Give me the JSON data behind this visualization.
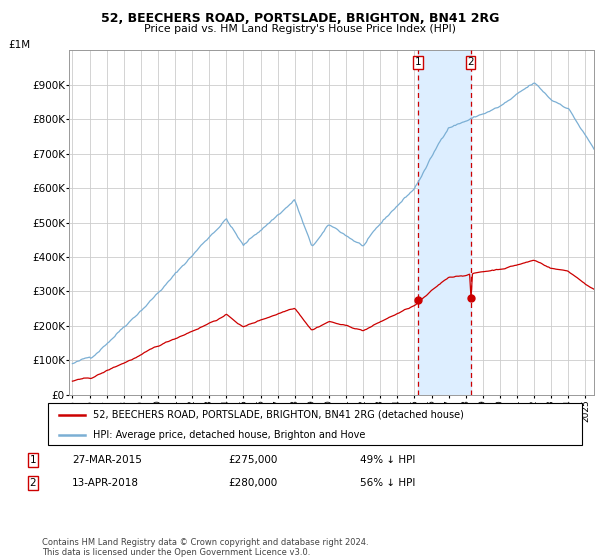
{
  "title": "52, BEECHERS ROAD, PORTSLADE, BRIGHTON, BN41 2RG",
  "subtitle": "Price paid vs. HM Land Registry's House Price Index (HPI)",
  "legend_label_red": "52, BEECHERS ROAD, PORTSLADE, BRIGHTON, BN41 2RG (detached house)",
  "legend_label_blue": "HPI: Average price, detached house, Brighton and Hove",
  "transaction1_date": "27-MAR-2015",
  "transaction1_price": "£275,000",
  "transaction1_hpi": "49% ↓ HPI",
  "transaction2_date": "13-APR-2018",
  "transaction2_price": "£280,000",
  "transaction2_hpi": "56% ↓ HPI",
  "footer": "Contains HM Land Registry data © Crown copyright and database right 2024.\nThis data is licensed under the Open Government Licence v3.0.",
  "ylim": [
    0,
    1000000
  ],
  "yticks": [
    0,
    100000,
    200000,
    300000,
    400000,
    500000,
    600000,
    700000,
    800000,
    900000
  ],
  "ytick_labels": [
    "£0",
    "£100K",
    "£200K",
    "£300K",
    "£400K",
    "£500K",
    "£600K",
    "£700K",
    "£800K",
    "£900K"
  ],
  "top_label": "£1M",
  "color_red": "#cc0000",
  "color_blue": "#7bafd4",
  "color_shading": "#ddeeff",
  "marker1_year": 2015.23,
  "marker2_year": 2018.28,
  "xlim_left": 1994.8,
  "xlim_right": 2025.5
}
